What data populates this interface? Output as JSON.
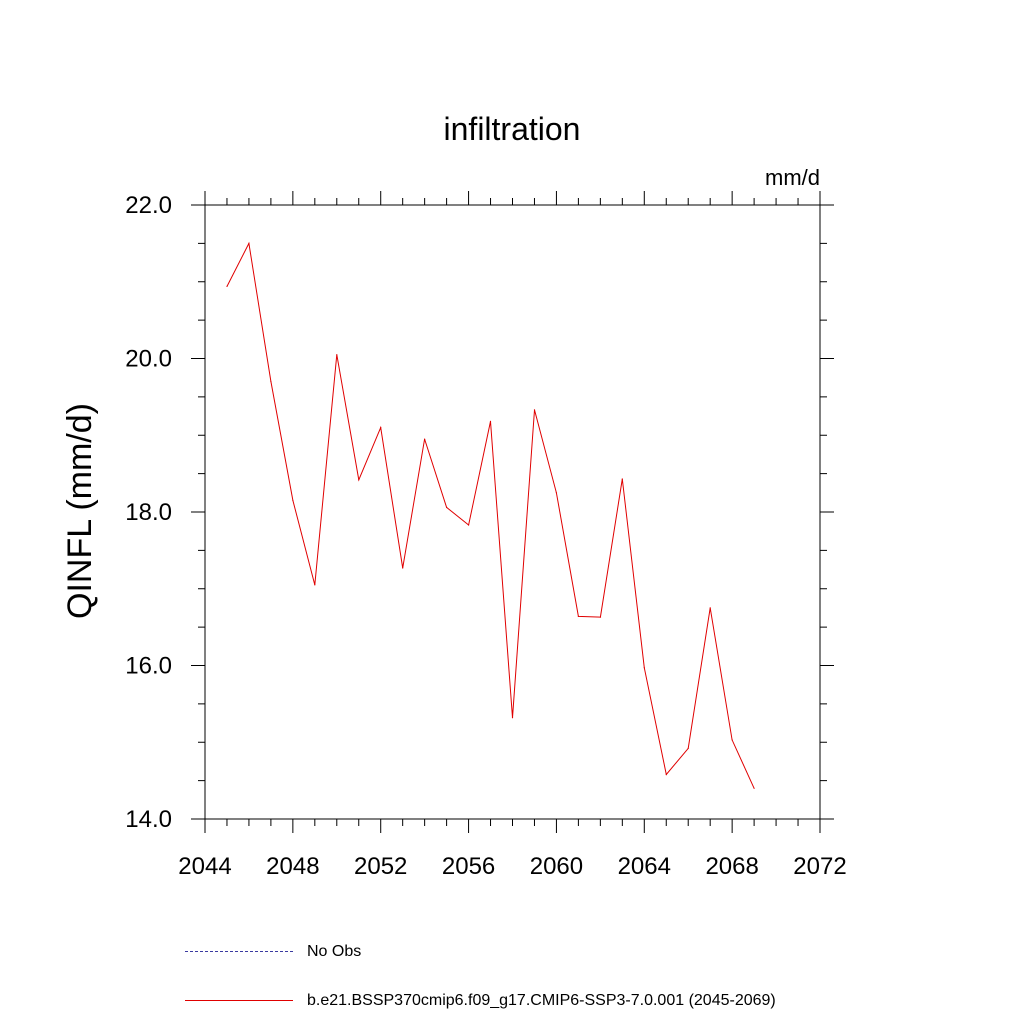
{
  "chart_data": {
    "type": "line",
    "title": "infiltration",
    "units": "mm/d",
    "ylabel": "QINFL  (mm/d)",
    "xlabel": "",
    "xlim": [
      2044,
      2072
    ],
    "ylim": [
      14.0,
      22.0
    ],
    "x_ticks": [
      2044,
      2048,
      2052,
      2056,
      2060,
      2064,
      2068,
      2072
    ],
    "y_ticks": [
      14.0,
      16.0,
      18.0,
      20.0,
      22.0
    ],
    "x_tick_labels": [
      "2044",
      "2048",
      "2052",
      "2056",
      "2060",
      "2064",
      "2068",
      "2072"
    ],
    "y_tick_labels": [
      "14.0",
      "16.0",
      "18.0",
      "20.0",
      "22.0"
    ],
    "series": [
      {
        "name": "b.e21.BSSP370cmip6.f09_g17.CMIP6-SSP3-7.0.001 (2045-2069)",
        "color": "#e00000",
        "x": [
          2045,
          2046,
          2047,
          2048,
          2049,
          2050,
          2051,
          2052,
          2053,
          2054,
          2055,
          2056,
          2057,
          2058,
          2059,
          2060,
          2061,
          2062,
          2063,
          2064,
          2065,
          2066,
          2067,
          2068,
          2069
        ],
        "y": [
          20.94,
          21.5,
          19.7,
          18.15,
          17.05,
          20.05,
          18.42,
          19.1,
          17.27,
          18.95,
          18.06,
          17.83,
          19.18,
          15.32,
          19.33,
          18.25,
          16.64,
          16.63,
          18.43,
          15.97,
          14.58,
          14.92,
          16.75,
          15.03,
          14.4
        ]
      }
    ],
    "legend": {
      "placement": "bottom",
      "entries": [
        {
          "label": "No Obs",
          "color": "#3a3aa0",
          "style": "dashed"
        },
        {
          "label": "b.e21.BSSP370cmip6.f09_g17.CMIP6-SSP3-7.0.001 (2045-2069)",
          "color": "#e00000",
          "style": "solid"
        }
      ]
    }
  }
}
